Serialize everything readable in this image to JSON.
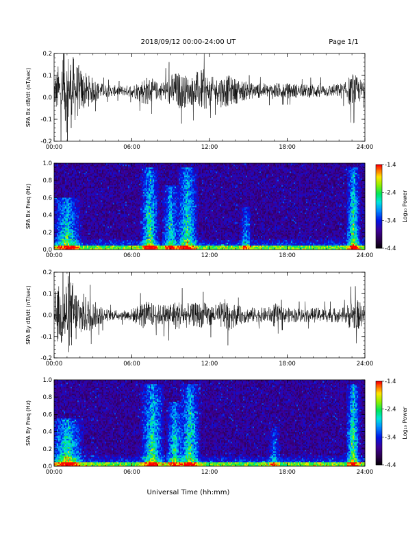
{
  "header": {
    "title": "2018/09/12  00:00-24:00 UT",
    "page": "Page 1/1"
  },
  "footer": {
    "xlabel": "Universal Time (hh:mm)"
  },
  "colorbar": {
    "label": "Log₁₀ Power",
    "ticks": [
      "-1.4",
      "-2.4",
      "-3.4",
      "-4.4"
    ],
    "range": [
      -4.4,
      -1.4
    ]
  },
  "chart_data": [
    {
      "type": "line",
      "id": "bx-waveform",
      "title": "",
      "ylabel": "SPA Bx dB/dt (nT/sec)",
      "xlabel": "",
      "x_ticks": [
        "00:00",
        "06:00",
        "12:00",
        "18:00",
        "24:00"
      ],
      "y_ticks": [
        "0.2",
        "0.1",
        "0.0",
        "-0.1",
        "-0.2"
      ],
      "xlim": [
        0,
        24
      ],
      "ylim": [
        -0.2,
        0.2
      ],
      "series": [
        {
          "envelope_hours": [
            0,
            0.5,
            1,
            1.5,
            2,
            2.5,
            3,
            3.5,
            4,
            4.5,
            5,
            5.5,
            6,
            6.5,
            7,
            7.5,
            8,
            8.5,
            9,
            9.5,
            10,
            10.5,
            11,
            11.5,
            12,
            12.5,
            13,
            13.5,
            14,
            14.5,
            15,
            15.5,
            16,
            16.5,
            17,
            17.5,
            18,
            18.5,
            19,
            19.5,
            20,
            20.5,
            21,
            21.5,
            22,
            22.5,
            23,
            23.5,
            24
          ],
          "envelope_amplitude": [
            0.09,
            0.14,
            0.2,
            0.16,
            0.11,
            0.08,
            0.06,
            0.04,
            0.03,
            0.025,
            0.025,
            0.025,
            0.03,
            0.045,
            0.07,
            0.06,
            0.04,
            0.05,
            0.08,
            0.09,
            0.08,
            0.06,
            0.09,
            0.1,
            0.07,
            0.06,
            0.08,
            0.07,
            0.06,
            0.05,
            0.04,
            0.035,
            0.035,
            0.035,
            0.04,
            0.035,
            0.035,
            0.035,
            0.03,
            0.03,
            0.035,
            0.035,
            0.03,
            0.03,
            0.035,
            0.04,
            0.09,
            0.06,
            0.04
          ],
          "baseline": 0.03
        }
      ]
    },
    {
      "type": "heatmap",
      "id": "bx-spectrogram",
      "title": "",
      "ylabel": "SPA Bx Freq (Hz)",
      "xlabel": "",
      "x_ticks": [
        "00:00",
        "06:00",
        "12:00",
        "18:00",
        "24:00"
      ],
      "y_ticks": [
        "1.0",
        "0.8",
        "0.6",
        "0.4",
        "0.2",
        "0.0"
      ],
      "xlim": [
        0,
        24
      ],
      "ylim": [
        0,
        1.0
      ],
      "zlim": [
        -4.4,
        -1.4
      ],
      "features": [
        {
          "hour": 1.0,
          "width": 1.2,
          "max_freq": 0.6,
          "level": 0.55
        },
        {
          "hour": 7.4,
          "width": 0.8,
          "max_freq": 0.95,
          "level": 0.55
        },
        {
          "hour": 9.0,
          "width": 0.7,
          "max_freq": 0.75,
          "level": 0.5
        },
        {
          "hour": 10.3,
          "width": 0.9,
          "max_freq": 0.95,
          "level": 0.55
        },
        {
          "hour": 14.8,
          "width": 0.5,
          "max_freq": 0.5,
          "level": 0.35
        },
        {
          "hour": 23.1,
          "width": 0.6,
          "max_freq": 0.95,
          "level": 0.6
        }
      ]
    },
    {
      "type": "line",
      "id": "by-waveform",
      "title": "",
      "ylabel": "SPA By dB/dt (nT/sec)",
      "xlabel": "",
      "x_ticks": [
        "00:00",
        "06:00",
        "12:00",
        "18:00",
        "24:00"
      ],
      "y_ticks": [
        "0.2",
        "0.1",
        "0.0",
        "-0.1",
        "-0.2"
      ],
      "xlim": [
        0,
        24
      ],
      "ylim": [
        -0.2,
        0.2
      ],
      "series": [
        {
          "envelope_hours": [
            0,
            0.5,
            1,
            1.5,
            2,
            2.5,
            3,
            3.5,
            4,
            4.5,
            5,
            5.5,
            6,
            6.5,
            7,
            7.5,
            8,
            8.5,
            9,
            9.5,
            10,
            10.5,
            11,
            11.5,
            12,
            12.5,
            13,
            13.5,
            14,
            14.5,
            15,
            15.5,
            16,
            16.5,
            17,
            17.5,
            18,
            18.5,
            19,
            19.5,
            20,
            20.5,
            21,
            21.5,
            22,
            22.5,
            23,
            23.5,
            24
          ],
          "envelope_amplitude": [
            0.1,
            0.16,
            0.2,
            0.16,
            0.12,
            0.09,
            0.07,
            0.05,
            0.03,
            0.025,
            0.025,
            0.025,
            0.03,
            0.05,
            0.07,
            0.06,
            0.05,
            0.055,
            0.07,
            0.07,
            0.07,
            0.05,
            0.06,
            0.06,
            0.06,
            0.05,
            0.07,
            0.08,
            0.05,
            0.04,
            0.04,
            0.035,
            0.035,
            0.035,
            0.06,
            0.04,
            0.035,
            0.035,
            0.035,
            0.035,
            0.035,
            0.035,
            0.035,
            0.035,
            0.035,
            0.04,
            0.08,
            0.07,
            0.04
          ],
          "baseline": 0.0
        }
      ]
    },
    {
      "type": "heatmap",
      "id": "by-spectrogram",
      "title": "",
      "ylabel": "SPA By Freq (Hz)",
      "xlabel": "",
      "x_ticks": [
        "00:00",
        "06:00",
        "12:00",
        "18:00",
        "24:00"
      ],
      "y_ticks": [
        "1.0",
        "0.8",
        "0.6",
        "0.4",
        "0.2",
        "0.0"
      ],
      "xlim": [
        0,
        24
      ],
      "ylim": [
        0,
        1.0
      ],
      "zlim": [
        -4.4,
        -1.4
      ],
      "features": [
        {
          "hour": 1.0,
          "width": 1.4,
          "max_freq": 0.55,
          "level": 0.6
        },
        {
          "hour": 7.6,
          "width": 1.0,
          "max_freq": 0.95,
          "level": 0.55
        },
        {
          "hour": 9.3,
          "width": 0.7,
          "max_freq": 0.75,
          "level": 0.5
        },
        {
          "hour": 10.5,
          "width": 0.9,
          "max_freq": 0.95,
          "level": 0.55
        },
        {
          "hour": 17.0,
          "width": 0.5,
          "max_freq": 0.45,
          "level": 0.3
        },
        {
          "hour": 23.1,
          "width": 0.6,
          "max_freq": 0.95,
          "level": 0.6
        }
      ]
    }
  ]
}
